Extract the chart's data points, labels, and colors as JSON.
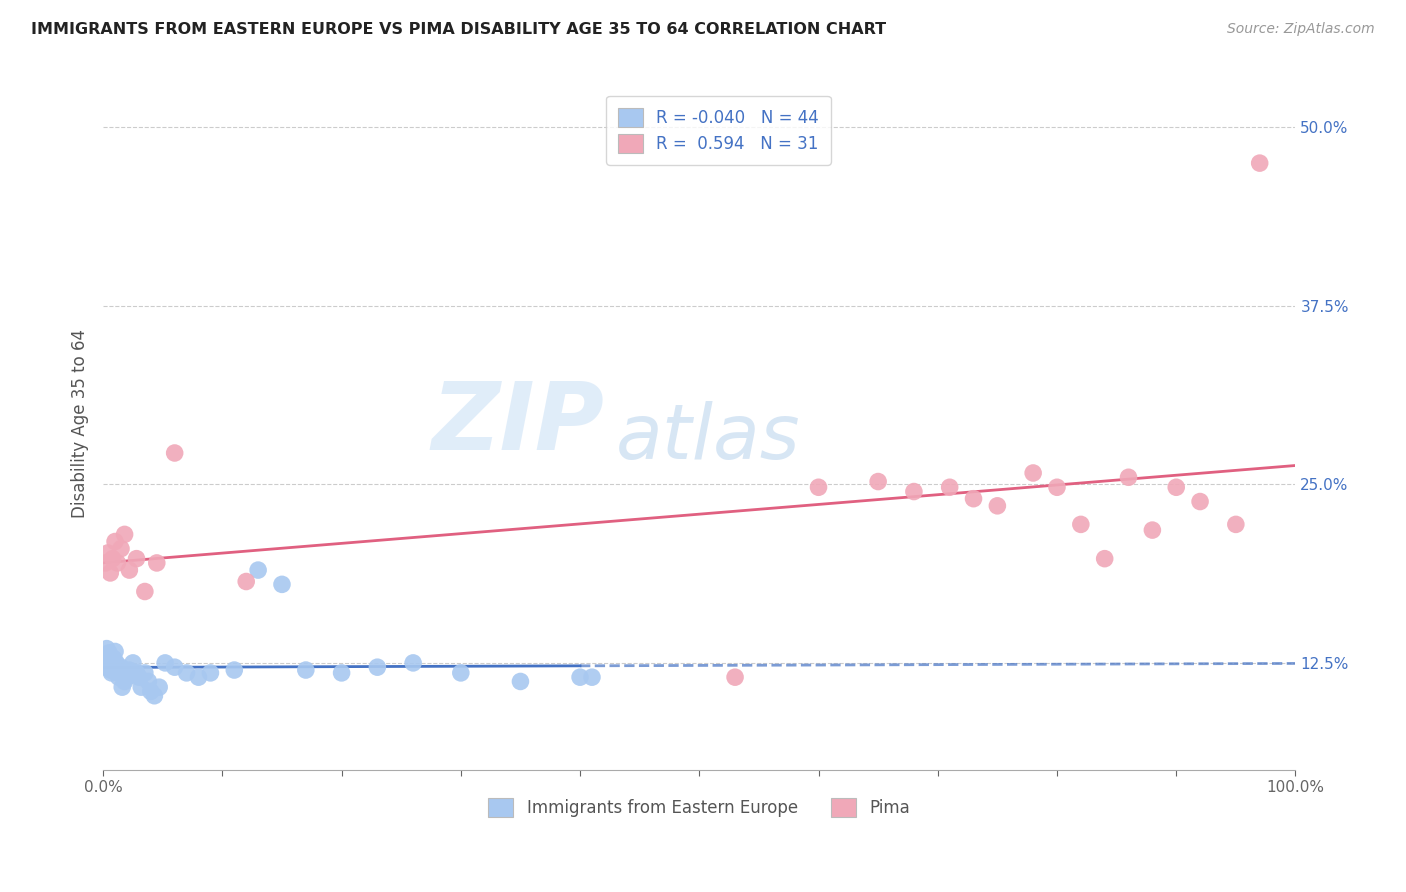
{
  "title": "IMMIGRANTS FROM EASTERN EUROPE VS PIMA DISABILITY AGE 35 TO 64 CORRELATION CHART",
  "source": "Source: ZipAtlas.com",
  "ylabel": "Disability Age 35 to 64",
  "xlim": [
    0.0,
    1.0
  ],
  "ylim": [
    0.05,
    0.535
  ],
  "xticks": [
    0.0,
    0.1,
    0.2,
    0.3,
    0.4,
    0.5,
    0.6,
    0.7,
    0.8,
    0.9,
    1.0
  ],
  "xticklabels": [
    "0.0%",
    "",
    "",
    "",
    "",
    "",
    "",
    "",
    "",
    "",
    "100.0%"
  ],
  "yticks": [
    0.125,
    0.25,
    0.375,
    0.5
  ],
  "yticklabels": [
    "12.5%",
    "25.0%",
    "37.5%",
    "50.0%"
  ],
  "blue_R": -0.04,
  "blue_N": 44,
  "pink_R": 0.594,
  "pink_N": 31,
  "blue_color": "#A8C8F0",
  "pink_color": "#F0A8B8",
  "blue_line_color": "#4472C4",
  "pink_line_color": "#E06080",
  "watermark_zip": "ZIP",
  "watermark_atlas": "atlas",
  "blue_scatter_x": [
    0.001,
    0.002,
    0.003,
    0.004,
    0.005,
    0.006,
    0.007,
    0.008,
    0.009,
    0.01,
    0.011,
    0.012,
    0.013,
    0.014,
    0.015,
    0.016,
    0.018,
    0.02,
    0.022,
    0.025,
    0.028,
    0.03,
    0.032,
    0.035,
    0.038,
    0.04,
    0.043,
    0.047,
    0.052,
    0.06,
    0.07,
    0.08,
    0.09,
    0.11,
    0.13,
    0.15,
    0.17,
    0.2,
    0.23,
    0.26,
    0.3,
    0.35,
    0.4,
    0.41
  ],
  "blue_scatter_y": [
    0.13,
    0.125,
    0.135,
    0.128,
    0.132,
    0.12,
    0.118,
    0.122,
    0.128,
    0.133,
    0.125,
    0.12,
    0.115,
    0.118,
    0.122,
    0.108,
    0.112,
    0.115,
    0.12,
    0.125,
    0.118,
    0.115,
    0.108,
    0.118,
    0.112,
    0.105,
    0.102,
    0.108,
    0.125,
    0.122,
    0.118,
    0.115,
    0.118,
    0.12,
    0.19,
    0.18,
    0.12,
    0.118,
    0.122,
    0.125,
    0.118,
    0.112,
    0.115,
    0.115
  ],
  "pink_scatter_x": [
    0.002,
    0.004,
    0.006,
    0.008,
    0.01,
    0.012,
    0.015,
    0.018,
    0.022,
    0.028,
    0.035,
    0.045,
    0.06,
    0.12,
    0.53,
    0.6,
    0.65,
    0.68,
    0.71,
    0.73,
    0.75,
    0.78,
    0.8,
    0.82,
    0.84,
    0.86,
    0.88,
    0.9,
    0.92,
    0.95,
    0.97
  ],
  "pink_scatter_y": [
    0.195,
    0.202,
    0.188,
    0.198,
    0.21,
    0.195,
    0.205,
    0.215,
    0.19,
    0.198,
    0.175,
    0.195,
    0.272,
    0.182,
    0.115,
    0.248,
    0.252,
    0.245,
    0.248,
    0.24,
    0.235,
    0.258,
    0.248,
    0.222,
    0.198,
    0.255,
    0.218,
    0.248,
    0.238,
    0.222,
    0.475
  ],
  "blue_solid_xlim": [
    0.0,
    0.4
  ],
  "blue_dash_xlim": [
    0.4,
    1.0
  ],
  "pink_solid_xlim": [
    0.0,
    1.0
  ]
}
